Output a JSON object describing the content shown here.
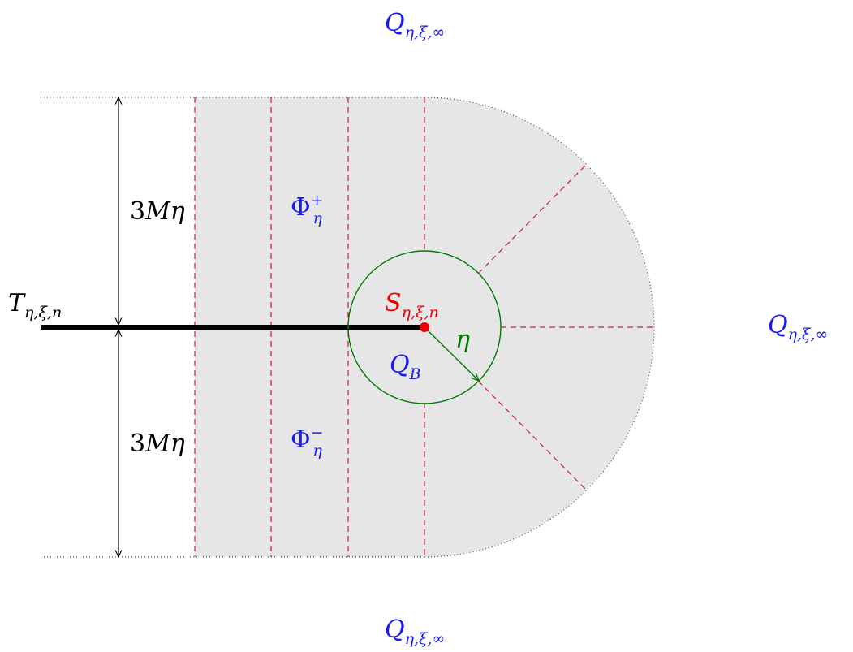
{
  "labels": {
    "top_region": {
      "main": "Q",
      "sub": "η,ξ,∞"
    },
    "right_region": {
      "main": "Q",
      "sub": "η,ξ,∞"
    },
    "bottom_region": {
      "main": "Q",
      "sub": "η,ξ,∞"
    },
    "segment": {
      "main": "T",
      "sub": "η,ξ,n"
    },
    "point": {
      "main": "S",
      "sub": "η,ξ,n"
    },
    "ball": {
      "main": "Q",
      "sub": "B"
    },
    "radius": "η",
    "upper_height": {
      "coef": "3",
      "rest": "Mη"
    },
    "lower_height": {
      "coef": "3",
      "rest": "Mη"
    },
    "upper_half": {
      "main": "Φ",
      "sub": "η",
      "sup": "+"
    },
    "lower_half": {
      "main": "Φ",
      "sub": "η",
      "sup": "−"
    }
  },
  "colors": {
    "region_fill": "#e6e6e6",
    "dashed_lines": "#c8194a",
    "circle": "#007a00",
    "point": "#ee0000",
    "label_blue": "#1a1aee",
    "label_red": "#ee0000",
    "label_green": "#007a00",
    "ink": "#000000"
  }
}
